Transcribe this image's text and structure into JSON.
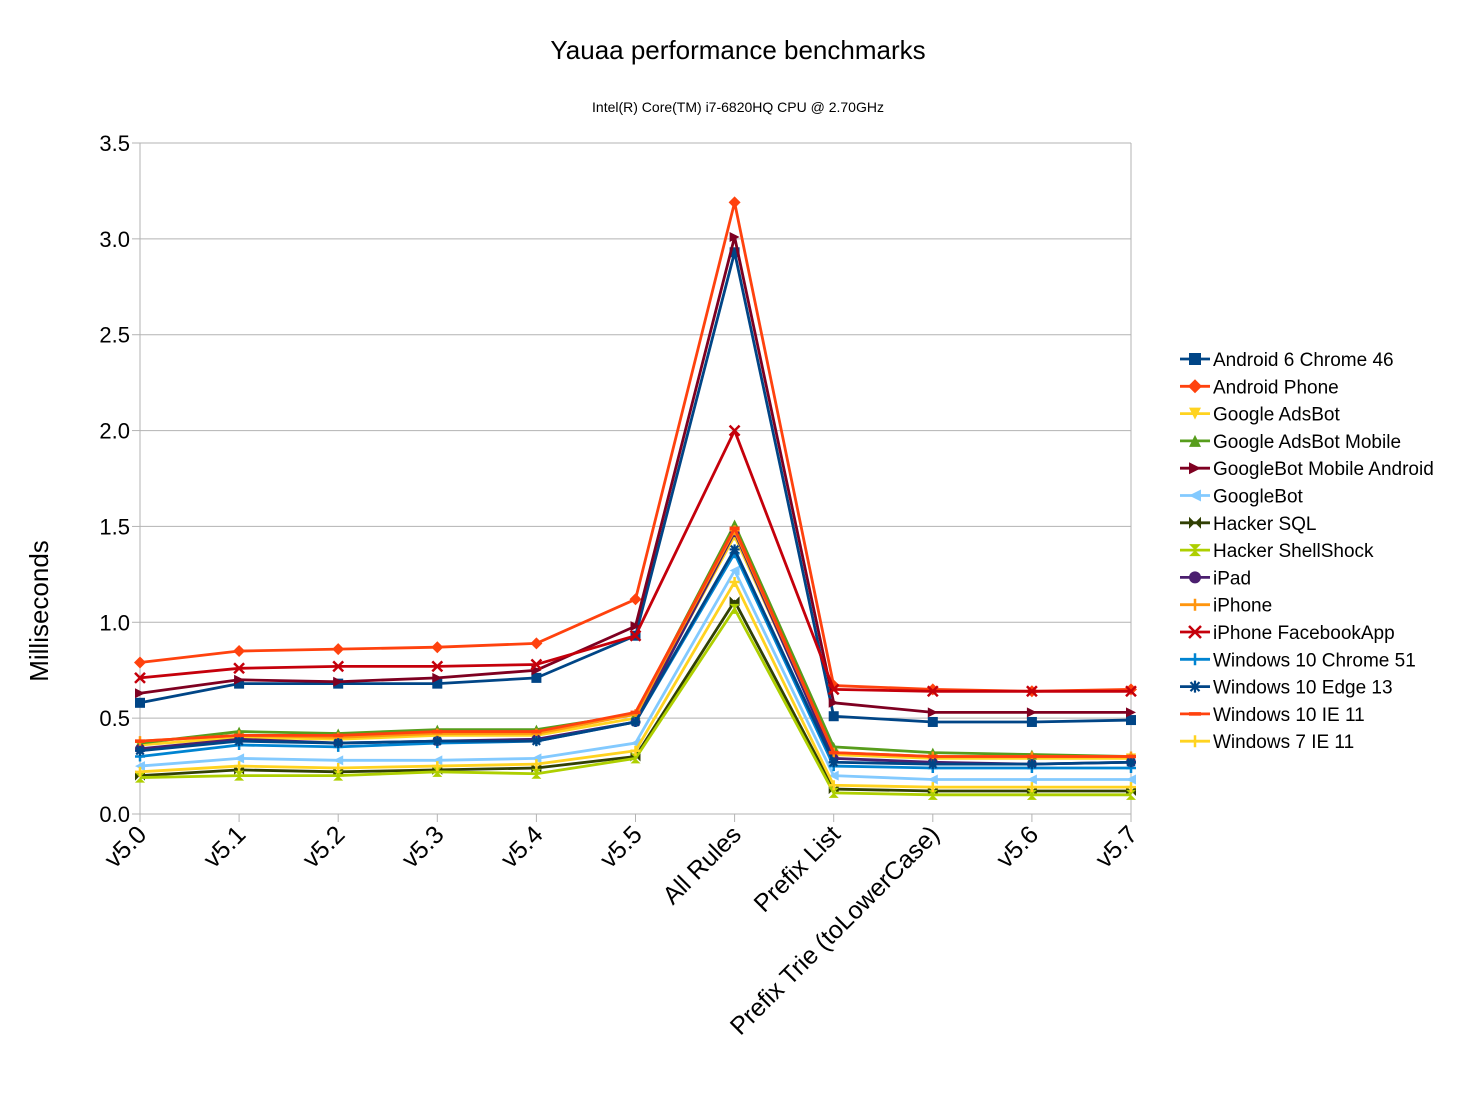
{
  "chart_data": {
    "type": "line",
    "title": "Yauaa performance benchmarks",
    "subtitle": "Intel(R) Core(TM) i7-6820HQ CPU @ 2.70GHz",
    "xlabel": "",
    "ylabel": "Milliseconds",
    "ylim": [
      0,
      3.5
    ],
    "yticks": [
      "0.0",
      "0.5",
      "1.0",
      "1.5",
      "2.0",
      "2.5",
      "3.0",
      "3.5"
    ],
    "grid": true,
    "legend_position": "right",
    "categories": [
      "v5.0",
      "v5.1",
      "v5.2",
      "v5.3",
      "v5.4",
      "v5.5",
      "All Rules",
      "Prefix List",
      "Prefix Trie (toLowerCase)",
      "v5.6",
      "v5.7"
    ],
    "series": [
      {
        "name": "Android 6 Chrome 46",
        "color": "#004586",
        "marker": "square",
        "values": [
          0.58,
          0.68,
          0.68,
          0.68,
          0.71,
          0.93,
          2.93,
          0.51,
          0.48,
          0.48,
          0.49
        ]
      },
      {
        "name": "Android Phone",
        "color": "#ff420e",
        "marker": "diamond",
        "values": [
          0.79,
          0.85,
          0.86,
          0.87,
          0.89,
          1.12,
          3.19,
          0.67,
          0.65,
          0.64,
          0.65
        ]
      },
      {
        "name": "Google AdsBot",
        "color": "#ffd320",
        "marker": "triangle-down",
        "values": [
          0.36,
          0.4,
          0.39,
          0.41,
          0.41,
          0.5,
          1.45,
          0.31,
          0.29,
          0.29,
          0.29
        ]
      },
      {
        "name": "Google AdsBot Mobile",
        "color": "#579d1c",
        "marker": "triangle-up",
        "values": [
          0.37,
          0.43,
          0.42,
          0.44,
          0.44,
          0.52,
          1.51,
          0.35,
          0.32,
          0.31,
          0.3
        ]
      },
      {
        "name": "GoogleBot Mobile Android",
        "color": "#7e0021",
        "marker": "triangle-right",
        "values": [
          0.63,
          0.7,
          0.69,
          0.71,
          0.75,
          0.98,
          3.01,
          0.58,
          0.53,
          0.53,
          0.53
        ]
      },
      {
        "name": "GoogleBot",
        "color": "#83caff",
        "marker": "triangle-left",
        "values": [
          0.25,
          0.29,
          0.28,
          0.28,
          0.29,
          0.37,
          1.27,
          0.2,
          0.18,
          0.18,
          0.18
        ]
      },
      {
        "name": "Hacker SQL",
        "color": "#314004",
        "marker": "bowtie",
        "values": [
          0.2,
          0.23,
          0.22,
          0.23,
          0.24,
          0.3,
          1.11,
          0.13,
          0.12,
          0.12,
          0.12
        ]
      },
      {
        "name": "Hacker ShellShock",
        "color": "#aecf00",
        "marker": "hourglass",
        "values": [
          0.19,
          0.2,
          0.2,
          0.22,
          0.21,
          0.29,
          1.07,
          0.11,
          0.1,
          0.1,
          0.1
        ]
      },
      {
        "name": "iPad",
        "color": "#4b1f6f",
        "marker": "circle",
        "values": [
          0.34,
          0.39,
          0.37,
          0.38,
          0.39,
          0.48,
          1.47,
          0.29,
          0.27,
          0.26,
          0.27
        ]
      },
      {
        "name": "iPhone",
        "color": "#ff950e",
        "marker": "plus",
        "values": [
          0.38,
          0.41,
          0.4,
          0.42,
          0.42,
          0.52,
          1.48,
          0.32,
          0.3,
          0.3,
          0.3
        ]
      },
      {
        "name": "iPhone FacebookApp",
        "color": "#c5000b",
        "marker": "x",
        "values": [
          0.71,
          0.76,
          0.77,
          0.77,
          0.78,
          0.93,
          2.0,
          0.65,
          0.64,
          0.64,
          0.64
        ]
      },
      {
        "name": "Windows 10 Chrome 51",
        "color": "#0084d1",
        "marker": "plus",
        "values": [
          0.3,
          0.36,
          0.35,
          0.37,
          0.38,
          0.48,
          1.36,
          0.25,
          0.24,
          0.24,
          0.24
        ]
      },
      {
        "name": "Windows 10 Edge 13",
        "color": "#004586",
        "marker": "star",
        "values": [
          0.33,
          0.38,
          0.37,
          0.38,
          0.38,
          0.48,
          1.38,
          0.27,
          0.26,
          0.26,
          0.27
        ]
      },
      {
        "name": "Windows 10 IE 11",
        "color": "#ff420e",
        "marker": "dash",
        "values": [
          0.38,
          0.41,
          0.41,
          0.43,
          0.43,
          0.53,
          1.49,
          0.32,
          0.3,
          0.3,
          0.3
        ]
      },
      {
        "name": "Windows 7 IE 11",
        "color": "#ffd320",
        "marker": "plus",
        "values": [
          0.22,
          0.25,
          0.24,
          0.25,
          0.26,
          0.33,
          1.21,
          0.15,
          0.14,
          0.14,
          0.14
        ]
      }
    ]
  }
}
